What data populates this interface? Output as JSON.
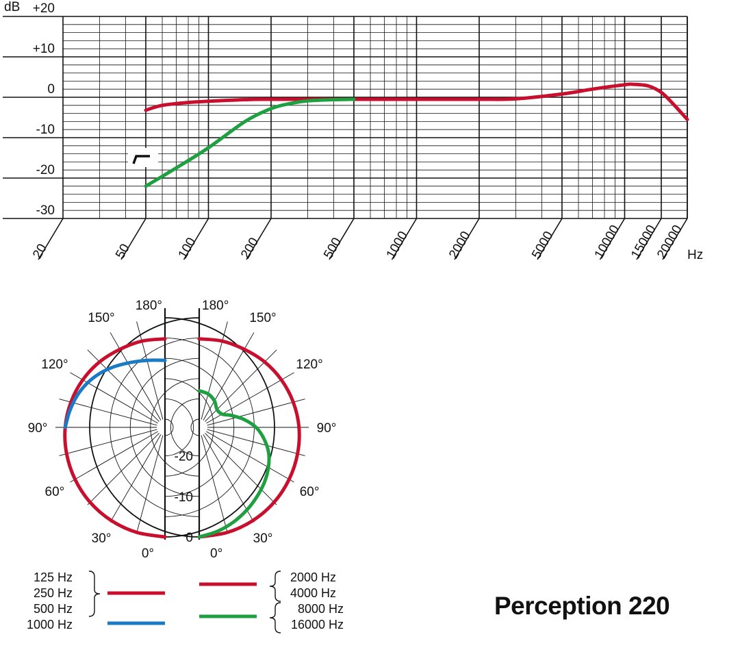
{
  "chart_data": [
    {
      "type": "line",
      "title": "",
      "xlabel": "",
      "ylabel": "",
      "x_unit": "Hz",
      "y_unit": "dB",
      "x_scale": "log",
      "xlim": [
        20,
        20000
      ],
      "ylim": [
        -30,
        20
      ],
      "x_tick_labels": [
        "20",
        "50",
        "100",
        "200",
        "500",
        "1000",
        "2000",
        "5000",
        "10000",
        "15000",
        "20000"
      ],
      "x_tick_values": [
        20,
        50,
        100,
        200,
        500,
        1000,
        2000,
        5000,
        10000,
        15000,
        20000
      ],
      "y_tick_labels": [
        "+20",
        "+10",
        "0",
        "-10",
        "-20",
        "-30"
      ],
      "y_tick_values": [
        20,
        10,
        0,
        -10,
        -20,
        -30
      ],
      "grid": true,
      "filter_symbol": "bass-cut-icon",
      "series": [
        {
          "color": "#c8102e",
          "x": [
            50,
            60,
            80,
            100,
            150,
            200,
            500,
            1000,
            2000,
            3000,
            5000,
            7000,
            10000,
            11000,
            13000,
            15000,
            17000,
            20000
          ],
          "y": [
            -3.2,
            -2.0,
            -1.3,
            -1.0,
            -0.6,
            -0.5,
            -0.5,
            -0.5,
            -0.5,
            -0.4,
            0.8,
            2.0,
            3.1,
            3.2,
            2.8,
            1.2,
            -1.5,
            -5.5
          ]
        },
        {
          "color": "#1fa040",
          "x": [
            50,
            70,
            100,
            150,
            200,
            250,
            300,
            400,
            500
          ],
          "y": [
            -22,
            -17.5,
            -12.5,
            -6.0,
            -2.8,
            -1.5,
            -0.9,
            -0.6,
            -0.5
          ]
        }
      ]
    },
    {
      "type": "polar",
      "title": "",
      "angle_labels_left": [
        "180°",
        "150°",
        "120°",
        "90°",
        "60°",
        "30°",
        "0°"
      ],
      "angle_labels_right": [
        "180°",
        "150°",
        "120°",
        "90°",
        "60°",
        "30°",
        "0°"
      ],
      "radial_labels": [
        "-20",
        "-10",
        "0"
      ],
      "radial_unit": "dB",
      "rlim": [
        -25,
        0
      ],
      "left": {
        "groups": [
          {
            "frequencies": [
              "125 Hz",
              "250 Hz",
              "500 Hz"
            ],
            "color": "#c8102e",
            "angles": [
              0,
              15,
              30,
              45,
              60,
              75,
              90,
              105,
              120,
              135,
              150,
              165,
              180
            ],
            "levels": [
              0,
              -0.2,
              -0.5,
              -0.9,
              -1.4,
              -1.9,
              -2.4,
              -3.0,
              -3.6,
              -4.2,
              -4.8,
              -5.0,
              -5.2
            ]
          },
          {
            "frequencies": [
              "1000 Hz"
            ],
            "color": "#1a7ac4",
            "angles": [
              90,
              100,
              110,
              120,
              130,
              140,
              150,
              160,
              170,
              180
            ],
            "levels": [
              -2.4,
              -3.2,
              -4.0,
              -5.0,
              -6.2,
              -7.5,
              -8.7,
              -9.6,
              -10.2,
              -10.5
            ]
          }
        ]
      },
      "right": {
        "groups": [
          {
            "frequencies": [
              "2000 Hz",
              "4000 Hz"
            ],
            "color": "#c8102e",
            "angles": [
              0,
              15,
              30,
              45,
              60,
              75,
              90,
              105,
              120,
              135,
              150,
              165,
              180
            ],
            "levels": [
              0,
              -0.2,
              -0.5,
              -0.9,
              -1.4,
              -1.9,
              -2.4,
              -3.0,
              -3.6,
              -4.2,
              -4.8,
              -5.0,
              -5.2
            ]
          },
          {
            "frequencies": [
              "8000 Hz",
              "16000 Hz"
            ],
            "color": "#1fa040",
            "angles": [
              0,
              10,
              20,
              30,
              40,
              50,
              60,
              70,
              80,
              90,
              100,
              110,
              120,
              135,
              150,
              165,
              180
            ],
            "levels": [
              0,
              -1.0,
              -2.2,
              -3.5,
              -4.8,
              -6.0,
              -7.3,
              -8.8,
              -10.8,
              -13.0,
              -15.8,
              -18.5,
              -20.5,
              -20.8,
              -19.5,
              -18.5,
              -18.0
            ]
          }
        ]
      }
    }
  ],
  "product_name": "Perception 220"
}
